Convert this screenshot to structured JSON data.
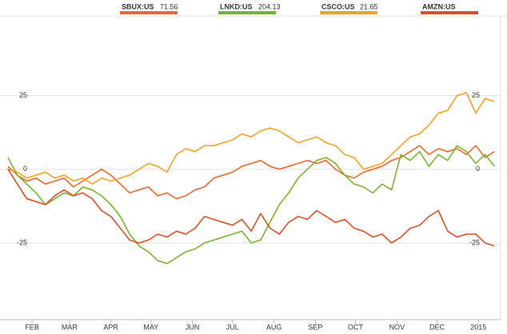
{
  "chart_data": {
    "type": "line",
    "x": [
      13,
      20,
      27,
      34,
      41,
      48,
      55,
      62,
      69,
      76,
      83,
      90,
      97,
      104,
      111,
      118,
      125,
      132,
      139,
      146,
      153,
      160,
      167,
      174,
      181,
      188,
      195,
      202,
      209,
      216,
      223,
      230,
      237,
      244,
      251,
      258,
      265,
      272,
      279,
      286,
      293,
      300,
      307,
      314,
      321,
      328,
      335,
      342,
      349,
      356,
      363,
      370,
      377
    ],
    "xlim": [
      13,
      378
    ],
    "xticks": [
      {
        "value": 31,
        "label": "FEB"
      },
      {
        "value": 59,
        "label": "MAR"
      },
      {
        "value": 90,
        "label": "APR"
      },
      {
        "value": 120,
        "label": "MAY"
      },
      {
        "value": 151,
        "label": "JUN"
      },
      {
        "value": 181,
        "label": "JUL"
      },
      {
        "value": 212,
        "label": "AUG"
      },
      {
        "value": 243,
        "label": "SEP"
      },
      {
        "value": 273,
        "label": "OCT"
      },
      {
        "value": 304,
        "label": "NOV"
      },
      {
        "value": 334,
        "label": "DEC"
      },
      {
        "value": 365,
        "label": "2015"
      }
    ],
    "ylim": [
      -51,
      52
    ],
    "yticks": [
      -25,
      0,
      25
    ],
    "grid": true,
    "series": [
      {
        "name": "SBUX:US",
        "price": 71.56,
        "color": "#e8672c",
        "values": [
          1,
          -2,
          -4,
          -3,
          -5,
          -4,
          -3,
          -6,
          -4,
          -2,
          0,
          -2,
          -5,
          -8,
          -7,
          -6,
          -9,
          -8,
          -10,
          -9,
          -7,
          -6,
          -3,
          -2,
          -1,
          1,
          2,
          3,
          1,
          0,
          1,
          2,
          3,
          2,
          3,
          0,
          -2,
          -3,
          -1,
          0,
          1,
          3,
          4,
          6,
          8,
          5,
          7,
          6,
          7,
          5,
          8,
          4,
          6
        ]
      },
      {
        "name": "LNKD:US",
        "price": 204.13,
        "color": "#78b22e",
        "values": [
          4,
          -2,
          -5,
          -8,
          -12,
          -10,
          -8,
          -9,
          -6,
          -7,
          -9,
          -12,
          -16,
          -22,
          -26,
          -28,
          -31,
          -32,
          -30,
          -28,
          -27,
          -25,
          -24,
          -23,
          -22,
          -21,
          -25,
          -24,
          -18,
          -12,
          -8,
          -3,
          0,
          3,
          4,
          2,
          -2,
          -5,
          -6,
          -8,
          -5,
          -7,
          5,
          3,
          6,
          1,
          5,
          3,
          8,
          6,
          2,
          5,
          1
        ]
      },
      {
        "name": "CSCO:US",
        "price": 21.65,
        "color": "#f0a225",
        "values": [
          0,
          -1,
          -3,
          -2,
          -1,
          -3,
          -2,
          -4,
          -3,
          -5,
          -3,
          -4,
          -3,
          -2,
          0,
          2,
          1,
          -1,
          5,
          7,
          6,
          8,
          8,
          9,
          10,
          12,
          11,
          13,
          14,
          13,
          11,
          9,
          10,
          11,
          9,
          8,
          5,
          4,
          0,
          1,
          2,
          5,
          8,
          11,
          12,
          15,
          19,
          20,
          25,
          26,
          19,
          24,
          23
        ]
      },
      {
        "name": "AMZN:US",
        "color": "#d94d22",
        "values": [
          0,
          -5,
          -10,
          -11,
          -12,
          -9,
          -7,
          -9,
          -8,
          -10,
          -14,
          -16,
          -20,
          -24,
          -25,
          -24,
          -22,
          -23,
          -21,
          -22,
          -20,
          -16,
          -17,
          -18,
          -19,
          -17,
          -21,
          -15,
          -20,
          -22,
          -18,
          -16,
          -17,
          -14,
          -16,
          -18,
          -17,
          -20,
          -21,
          -23,
          -22,
          -25,
          -23,
          -20,
          -19,
          -16,
          -14,
          -21,
          -23,
          -22,
          -22,
          -25,
          -26
        ]
      }
    ]
  }
}
